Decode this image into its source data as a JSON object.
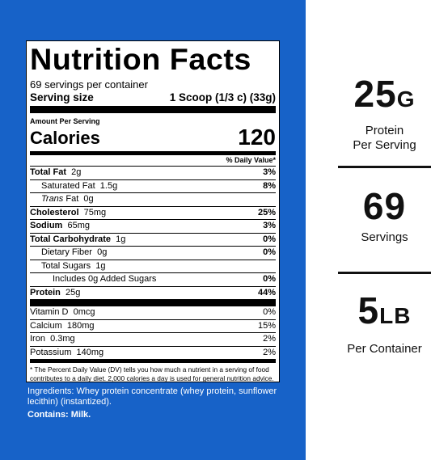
{
  "label": {
    "title": "Nutrition Facts",
    "servings_per_container": "69 servings per container",
    "serving_size_label": "Serving size",
    "serving_size_value": "1 Scoop (1/3 c) (33g)",
    "amount_per_serving": "Amount Per Serving",
    "calories_label": "Calories",
    "calories_value": "120",
    "dv_header": "% Daily Value*",
    "nutrients": [
      {
        "name": "Total Fat",
        "amount": "2g",
        "dv": "3%"
      },
      {
        "name": "Saturated Fat",
        "amount": "1.5g",
        "dv": "8%"
      },
      {
        "name": "Trans",
        "suffix": "Fat",
        "amount": "0g",
        "dv": ""
      },
      {
        "name": "Cholesterol",
        "amount": "75mg",
        "dv": "25%"
      },
      {
        "name": "Sodium",
        "amount": "65mg",
        "dv": "3%"
      },
      {
        "name": "Total Carbohydrate",
        "amount": "1g",
        "dv": "0%"
      },
      {
        "name": "Dietary Fiber",
        "amount": "0g",
        "dv": "0%"
      },
      {
        "name": "Total Sugars",
        "amount": "1g",
        "dv": ""
      },
      {
        "name": "Includes 0g Added Sugars",
        "amount": "",
        "dv": "0%"
      },
      {
        "name": "Protein",
        "amount": "25g",
        "dv": "44%"
      }
    ],
    "vitamins": [
      {
        "name": "Vitamin D",
        "amount": "0mcg",
        "dv": "0%"
      },
      {
        "name": "Calcium",
        "amount": "180mg",
        "dv": "15%"
      },
      {
        "name": "Iron",
        "amount": "0.3mg",
        "dv": "2%"
      },
      {
        "name": "Potassium",
        "amount": "140mg",
        "dv": "2%"
      }
    ],
    "footnote": "* The Percent Daily Value (DV) tells you how much a nutrient in a serving of food contributes to a daily diet. 2,000 calories a day is used for general nutrition advice."
  },
  "ingredients": "Ingredients: Whey protein concentrate (whey protein, sunflower lecithin) (instantized).",
  "contains": "Contains: Milk.",
  "stats": [
    {
      "big": "25",
      "unit": "G",
      "sub1": "Protein",
      "sub2": "Per Serving"
    },
    {
      "big": "69",
      "unit": "",
      "sub1": "Servings",
      "sub2": ""
    },
    {
      "big": "5",
      "unit": "LB",
      "sub1": "Per Container",
      "sub2": ""
    }
  ],
  "colors": {
    "panel": "#1762c8",
    "text": "#111111"
  }
}
